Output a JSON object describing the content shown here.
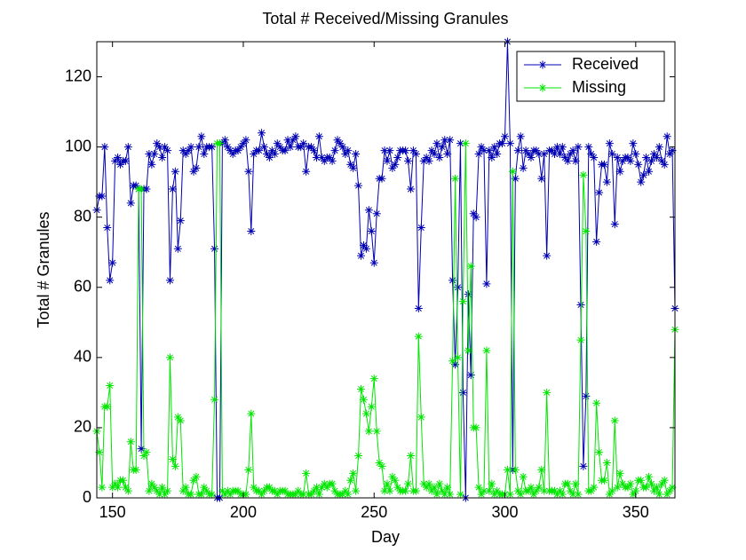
{
  "chart_data": {
    "type": "line",
    "title": "Total # Received/Missing Granules",
    "x_label": "Day",
    "y_label": "Total # Granules",
    "xlim": [
      144,
      365
    ],
    "ylim": [
      0,
      130
    ],
    "xticks": [
      150,
      200,
      250,
      300,
      350
    ],
    "yticks": [
      0,
      20,
      40,
      60,
      80,
      100,
      120
    ],
    "grid": false,
    "legend": "upper right",
    "x": [
      144,
      145,
      146,
      147,
      148,
      149,
      150,
      151,
      152,
      153,
      154,
      155,
      156,
      157,
      158,
      159,
      160,
      161,
      162,
      163,
      164,
      165,
      166,
      167,
      168,
      169,
      170,
      171,
      172,
      173,
      174,
      175,
      176,
      177,
      178,
      179,
      180,
      181,
      182,
      183,
      184,
      185,
      186,
      187,
      188,
      189,
      190,
      191,
      192,
      193,
      194,
      195,
      196,
      197,
      198,
      199,
      200,
      201,
      202,
      203,
      204,
      205,
      206,
      207,
      208,
      209,
      210,
      211,
      212,
      213,
      214,
      215,
      216,
      217,
      218,
      219,
      220,
      221,
      222,
      223,
      224,
      225,
      226,
      227,
      228,
      229,
      230,
      231,
      232,
      233,
      234,
      235,
      236,
      237,
      238,
      239,
      240,
      241,
      242,
      243,
      244,
      245,
      246,
      247,
      248,
      249,
      250,
      251,
      252,
      253,
      254,
      255,
      256,
      257,
      258,
      259,
      260,
      261,
      262,
      263,
      264,
      265,
      266,
      267,
      268,
      269,
      270,
      271,
      272,
      273,
      274,
      275,
      276,
      277,
      278,
      279,
      280,
      281,
      282,
      283,
      284,
      285,
      286,
      287,
      288,
      289,
      290,
      291,
      292,
      293,
      294,
      295,
      296,
      297,
      298,
      299,
      300,
      301,
      302,
      303,
      304,
      305,
      306,
      307,
      308,
      309,
      310,
      311,
      312,
      313,
      314,
      315,
      316,
      317,
      318,
      319,
      320,
      321,
      322,
      323,
      324,
      325,
      326,
      327,
      328,
      329,
      330,
      331,
      332,
      333,
      334,
      335,
      336,
      337,
      338,
      339,
      340,
      341,
      342,
      343,
      344,
      345,
      346,
      347,
      348,
      349,
      350,
      351,
      352,
      353,
      354,
      355,
      356,
      357,
      358,
      359,
      360,
      361,
      362,
      363,
      364,
      365
    ],
    "series": [
      {
        "name": "Received",
        "color": "#0000b4",
        "values": [
          82,
          86,
          86,
          100,
          77,
          62,
          67,
          96,
          97,
          95,
          96,
          96,
          100,
          84,
          89,
          89,
          88,
          14,
          88,
          88,
          98,
          95,
          98,
          101,
          100,
          97,
          100,
          99,
          62,
          88,
          93,
          71,
          79,
          99,
          98,
          99,
          100,
          93,
          94,
          100,
          103,
          98,
          100,
          100,
          100,
          71,
          0,
          0,
          101,
          102,
          100,
          99,
          98,
          99,
          99,
          100,
          101,
          102,
          93,
          76,
          98,
          99,
          99,
          104,
          100,
          98,
          97,
          99,
          98,
          101,
          100,
          99,
          99,
          102,
          100,
          102,
          103,
          100,
          100,
          101,
          93,
          100,
          100,
          99,
          97,
          103,
          97,
          96,
          97,
          97,
          96,
          99,
          102,
          101,
          100,
          98,
          99,
          95,
          94,
          98,
          89,
          69,
          72,
          71,
          82,
          76,
          67,
          81,
          91,
          91,
          99,
          96,
          99,
          94,
          95,
          97,
          99,
          99,
          99,
          96,
          88,
          99,
          98,
          54,
          77,
          96,
          97,
          96,
          99,
          98,
          101,
          97,
          100,
          102,
          98,
          102,
          62,
          38,
          60,
          101,
          30,
          0,
          58,
          35,
          81,
          80,
          98,
          100,
          99,
          61,
          99,
          97,
          100,
          98,
          101,
          101,
          103,
          130,
          101,
          8,
          91,
          99,
          103,
          94,
          99,
          98,
          97,
          99,
          99,
          98,
          91,
          98,
          69,
          99,
          99,
          98,
          100,
          98,
          100,
          97,
          96,
          98,
          99,
          96,
          100,
          55,
          9,
          29,
          100,
          98,
          97,
          73,
          87,
          95,
          95,
          90,
          101,
          98,
          78,
          97,
          93,
          96,
          97,
          97,
          96,
          101,
          98,
          95,
          90,
          92,
          97,
          93,
          96,
          98,
          97,
          100,
          96,
          95,
          103,
          98,
          99,
          54
        ]
      },
      {
        "name": "Missing",
        "color": "#00e600",
        "values": [
          19,
          13,
          3,
          26,
          26,
          32,
          3,
          4,
          3,
          5,
          5,
          3,
          2,
          16,
          8,
          8,
          88,
          88,
          12,
          13,
          2,
          4,
          3,
          2,
          1,
          3,
          1,
          2,
          40,
          11,
          9,
          23,
          22,
          2,
          3,
          1,
          1,
          5,
          6,
          1,
          1,
          3,
          2,
          1,
          1,
          28,
          101,
          101,
          2,
          1,
          2,
          1,
          2,
          2,
          2,
          1,
          1,
          1,
          8,
          24,
          3,
          2,
          2,
          1,
          2,
          3,
          3,
          2,
          2,
          1,
          2,
          2,
          2,
          1,
          1,
          1,
          1,
          2,
          1,
          1,
          7,
          1,
          1,
          2,
          3,
          1,
          3,
          4,
          3,
          4,
          4,
          2,
          1,
          1,
          1,
          2,
          1,
          5,
          7,
          2,
          12,
          31,
          28,
          24,
          19,
          26,
          34,
          19,
          10,
          9,
          2,
          4,
          2,
          6,
          5,
          3,
          2,
          2,
          2,
          4,
          12,
          2,
          2,
          46,
          23,
          4,
          3,
          4,
          2,
          3,
          1,
          4,
          2,
          1,
          3,
          1,
          39,
          91,
          40,
          1,
          56,
          101,
          42,
          66,
          20,
          20,
          3,
          1,
          2,
          42,
          2,
          4,
          1,
          2,
          1,
          1,
          1,
          8,
          1,
          93,
          8,
          2,
          1,
          6,
          2,
          2,
          3,
          1,
          2,
          3,
          8,
          2,
          30,
          2,
          2,
          2,
          1,
          2,
          1,
          4,
          4,
          2,
          1,
          4,
          1,
          45,
          92,
          76,
          2,
          2,
          3,
          27,
          13,
          5,
          5,
          10,
          1,
          2,
          22,
          3,
          7,
          4,
          3,
          3,
          4,
          1,
          2,
          5,
          5,
          3,
          3,
          6,
          4,
          2,
          3,
          1,
          4,
          5,
          1,
          2,
          3,
          48
        ]
      }
    ]
  }
}
